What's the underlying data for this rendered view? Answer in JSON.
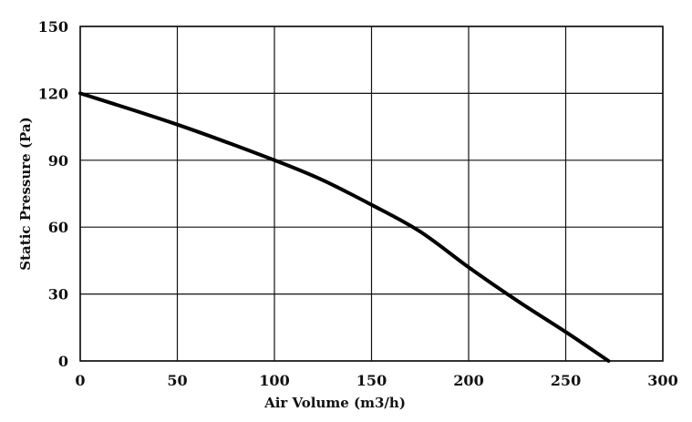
{
  "chart_data": {
    "type": "line",
    "title": "",
    "xlabel": "Air Volume (m3/h)",
    "ylabel": "Static Pressure (Pa)",
    "xlim": [
      0,
      300
    ],
    "ylim": [
      0,
      150
    ],
    "xticks": [
      0,
      50,
      100,
      150,
      200,
      250,
      300
    ],
    "yticks": [
      0,
      30,
      60,
      90,
      120,
      150
    ],
    "grid": true,
    "series": [
      {
        "x": [
          0,
          50,
          100,
          125,
          150,
          175,
          200,
          225,
          250,
          272
        ],
        "y": [
          120,
          106,
          90,
          81,
          70,
          58,
          42,
          27,
          13,
          0
        ]
      }
    ]
  }
}
